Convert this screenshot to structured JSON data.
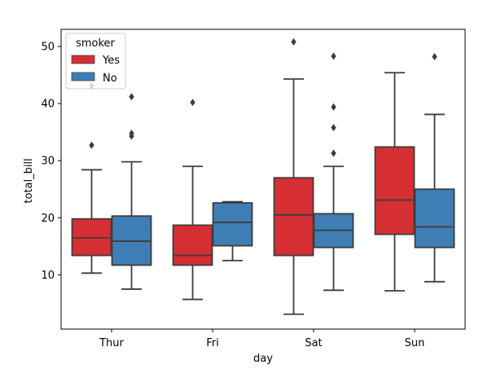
{
  "chart_data": {
    "type": "boxplot",
    "title": "",
    "xlabel": "day",
    "ylabel": "total_bill",
    "categories": [
      "Thur",
      "Fri",
      "Sat",
      "Sun"
    ],
    "ylim": [
      0.5,
      53.0
    ],
    "yticks": [
      10,
      20,
      30,
      40,
      50
    ],
    "legend": {
      "title": "smoker",
      "position": "top-left"
    },
    "series": [
      {
        "name": "Yes",
        "color": "#d62f33",
        "boxes": [
          {
            "whisker_low": 10.3,
            "q1": 13.4,
            "median": 16.5,
            "q3": 19.8,
            "whisker_high": 28.4,
            "outliers": [
              32.7,
              43.1
            ]
          },
          {
            "whisker_low": 5.7,
            "q1": 11.7,
            "median": 13.4,
            "q3": 18.7,
            "whisker_high": 29.0,
            "outliers": [
              40.2
            ]
          },
          {
            "whisker_low": 3.1,
            "q1": 13.4,
            "median": 20.5,
            "q3": 27.0,
            "whisker_high": 44.3,
            "outliers": [
              50.8
            ]
          },
          {
            "whisker_low": 7.2,
            "q1": 17.1,
            "median": 23.1,
            "q3": 32.4,
            "whisker_high": 45.4,
            "outliers": []
          }
        ]
      },
      {
        "name": "No",
        "color": "#3f7eb5",
        "boxes": [
          {
            "whisker_low": 7.5,
            "q1": 11.7,
            "median": 15.9,
            "q3": 20.3,
            "whisker_high": 29.8,
            "outliers": [
              34.3,
              34.8,
              41.2
            ]
          },
          {
            "whisker_low": 12.5,
            "q1": 15.1,
            "median": 19.2,
            "q3": 22.6,
            "whisker_high": 22.8,
            "outliers": []
          },
          {
            "whisker_low": 7.3,
            "q1": 14.8,
            "median": 17.8,
            "q3": 20.7,
            "whisker_high": 29.0,
            "outliers": [
              31.3,
              35.8,
              39.4,
              48.3
            ]
          },
          {
            "whisker_low": 8.8,
            "q1": 14.8,
            "median": 18.4,
            "q3": 25.0,
            "whisker_high": 38.1,
            "outliers": [
              48.2
            ]
          }
        ]
      }
    ]
  }
}
